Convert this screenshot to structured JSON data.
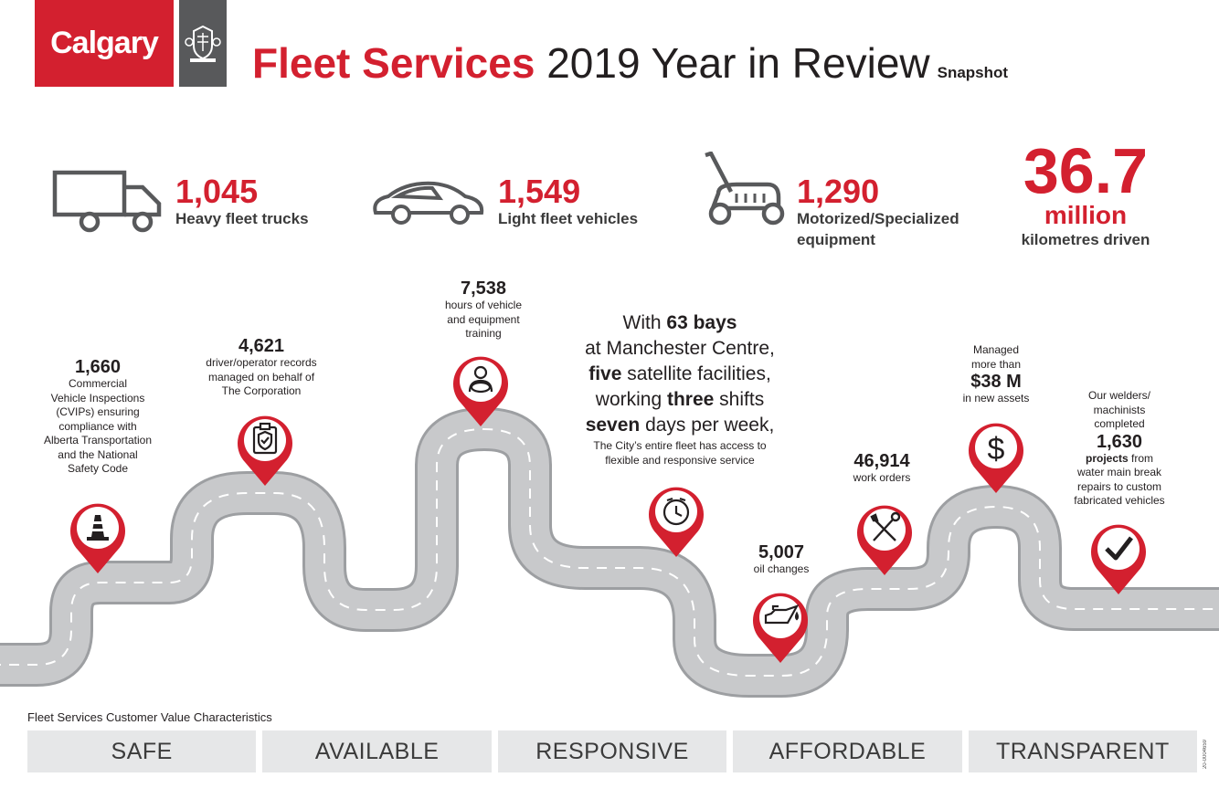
{
  "header": {
    "logo_text": "Calgary",
    "title_red": "Fleet Services",
    "title_rest": " 2019 Year in Review",
    "snapshot": "Snapshot"
  },
  "stats": [
    {
      "icon": "truck-icon",
      "value": "1,045",
      "label": "Heavy fleet trucks"
    },
    {
      "icon": "car-icon",
      "value": "1,549",
      "label": "Light fleet vehicles"
    },
    {
      "icon": "lawn-mower-icon",
      "value": "1,290",
      "label_line1": "Motorized/Specialized",
      "label_line2": "equipment"
    },
    {
      "value": "36.7",
      "unit": "million",
      "label": "kilometres driven"
    }
  ],
  "milestones": {
    "inspections": {
      "icon": "traffic-cone-icon",
      "value": "1,660",
      "lines": [
        "Commercial",
        "Vehicle Inspections",
        "(CVIPs) ensuring",
        "compliance with",
        "Alberta Transportation",
        "and the National",
        "Safety Code"
      ]
    },
    "records": {
      "icon": "clipboard-shield-icon",
      "value": "4,621",
      "lines": [
        "driver/operator records",
        "managed on behalf of",
        "The Corporation"
      ]
    },
    "training": {
      "icon": "driver-icon",
      "value": "7,538",
      "lines": [
        "hours of vehicle",
        "and equipment",
        "training"
      ]
    },
    "service": {
      "icon": "clock-icon",
      "p1a": "With ",
      "p1b": "63 bays",
      "p2": "at Manchester Centre,",
      "p3a": "five",
      "p3b": " satellite facilities,",
      "p4a": "working ",
      "p4b": "three",
      "p4c": " shifts",
      "p5a": "seven",
      "p5b": " days per week,",
      "small1": "The City’s entire fleet has access to",
      "small2": "flexible and responsive service"
    },
    "oil": {
      "icon": "oil-can-icon",
      "value": "5,007",
      "label": "oil changes"
    },
    "work_orders": {
      "icon": "tools-icon",
      "value": "46,914",
      "label": "work orders"
    },
    "assets": {
      "icon": "dollar-icon",
      "pre1": "Managed",
      "pre2": "more than",
      "value": "$38 M",
      "post": "in new assets"
    },
    "projects": {
      "icon": "checkmark-icon",
      "lines_pre": [
        "Our welders/",
        "machinists",
        "completed"
      ],
      "value": "1,630",
      "bold_word": "projects",
      "after_bold": " from",
      "lines_post": [
        "water main break",
        "repairs to custom",
        "fabricated vehicles"
      ]
    }
  },
  "footer": {
    "label": "Fleet Services Customer Value Characteristics",
    "items": [
      "SAFE",
      "AVAILABLE",
      "RESPONSIVE",
      "AFFORDABLE",
      "TRANSPARENT"
    ],
    "code": "20-0004659"
  },
  "colors": {
    "accent": "#d3202f",
    "road": "#c8c9cb",
    "road_edge": "#9d9fa2",
    "dark": "#58595b"
  }
}
